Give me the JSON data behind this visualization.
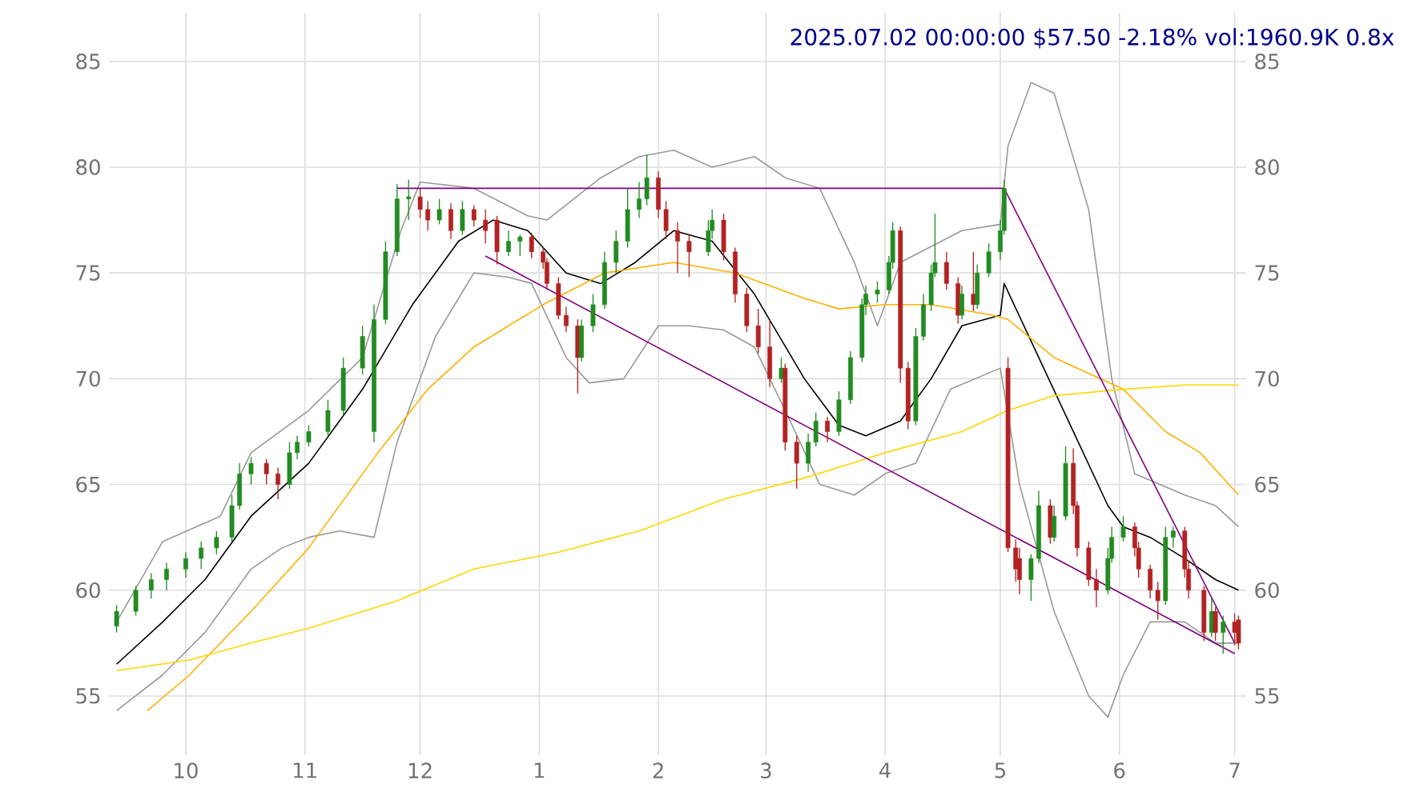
{
  "chart_data": {
    "type": "candlestick",
    "title": "2025.07.02 00:00:00 $57.50 -2.18% vol:1960.9K 0.8x",
    "x": [
      "2024-09-13",
      "2024-09-18",
      "2024-09-22",
      "2024-09-26",
      "2024-10-01",
      "2024-10-05",
      "2024-10-09",
      "2024-10-13",
      "2024-10-15",
      "2024-10-18",
      "2024-10-22",
      "2024-10-25",
      "2024-10-28",
      "2024-10-30",
      "2024-11-02",
      "2024-11-07",
      "2024-11-11",
      "2024-11-16",
      "2024-11-19",
      "2024-11-22",
      "2024-11-25",
      "2024-11-28",
      "2024-12-01",
      "2024-12-03",
      "2024-12-06",
      "2024-12-09",
      "2024-12-12",
      "2024-12-15",
      "2024-12-18",
      "2024-12-21",
      "2024-12-24",
      "2024-12-27",
      "2024-12-30",
      "2025-01-02",
      "2025-01-03",
      "2025-01-06",
      "2025-01-08",
      "2025-01-11",
      "2025-01-12",
      "2025-01-15",
      "2025-01-18",
      "2025-01-21",
      "2025-01-24",
      "2025-01-27",
      "2025-01-29",
      "2025-02-01",
      "2025-02-03",
      "2025-02-06",
      "2025-02-09",
      "2025-02-14",
      "2025-02-15",
      "2025-02-18",
      "2025-02-21",
      "2025-02-24",
      "2025-02-27",
      "2025-03-02",
      "2025-03-05",
      "2025-03-06",
      "2025-03-09",
      "2025-03-12",
      "2025-03-14",
      "2025-03-17",
      "2025-03-20",
      "2025-03-23",
      "2025-03-26",
      "2025-03-27",
      "2025-03-30",
      "2025-04-02",
      "2025-04-03",
      "2025-04-05",
      "2025-04-07",
      "2025-04-09",
      "2025-04-11",
      "2025-04-13",
      "2025-04-14",
      "2025-04-17",
      "2025-04-20",
      "2025-04-21",
      "2025-04-24",
      "2025-04-25",
      "2025-04-28",
      "2025-05-01",
      "2025-05-02",
      "2025-05-03",
      "2025-05-05",
      "2025-05-06",
      "2025-05-09",
      "2025-05-11",
      "2025-05-14",
      "2025-05-15",
      "2025-05-18",
      "2025-05-20",
      "2025-05-21",
      "2025-05-24",
      "2025-05-26",
      "2025-05-29",
      "2025-05-30",
      "2025-06-02",
      "2025-06-05",
      "2025-06-06",
      "2025-06-09",
      "2025-06-11",
      "2025-06-13",
      "2025-06-15",
      "2025-06-18",
      "2025-06-19",
      "2025-06-23",
      "2025-06-25",
      "2025-06-26",
      "2025-06-28",
      "2025-07-01",
      "2025-07-02"
    ],
    "ohlc": [
      [
        58.3,
        59.3,
        58.0,
        59.0
      ],
      [
        59.0,
        60.2,
        58.8,
        60.0
      ],
      [
        60.0,
        60.8,
        59.6,
        60.5
      ],
      [
        60.5,
        61.3,
        60.0,
        61.0
      ],
      [
        61.0,
        61.8,
        60.6,
        61.5
      ],
      [
        61.5,
        62.3,
        61.0,
        62.0
      ],
      [
        62.0,
        62.8,
        61.7,
        62.5
      ],
      [
        62.5,
        64.5,
        62.3,
        64.0
      ],
      [
        64.0,
        66.0,
        63.8,
        65.5
      ],
      [
        65.5,
        66.3,
        65.0,
        66.0
      ],
      [
        66.0,
        66.2,
        65.0,
        65.5
      ],
      [
        65.5,
        65.8,
        64.3,
        65.0
      ],
      [
        65.0,
        67.0,
        64.8,
        66.5
      ],
      [
        66.5,
        67.3,
        66.2,
        67.0
      ],
      [
        67.0,
        67.8,
        66.8,
        67.5
      ],
      [
        67.5,
        69.0,
        67.3,
        68.5
      ],
      [
        68.5,
        71.0,
        68.3,
        70.5
      ],
      [
        70.5,
        72.5,
        70.2,
        72.0
      ],
      [
        67.5,
        73.5,
        67.0,
        72.8
      ],
      [
        72.8,
        76.5,
        72.6,
        76.0
      ],
      [
        76.0,
        79.2,
        75.8,
        78.5
      ],
      [
        78.5,
        79.4,
        77.5,
        78.6
      ],
      [
        78.6,
        79.0,
        77.6,
        78.0
      ],
      [
        78.0,
        78.4,
        77.0,
        77.5
      ],
      [
        77.5,
        78.5,
        77.3,
        78.0
      ],
      [
        78.0,
        78.3,
        76.6,
        77.0
      ],
      [
        77.0,
        78.4,
        76.8,
        78.0
      ],
      [
        78.0,
        78.2,
        77.2,
        77.5
      ],
      [
        77.5,
        78.0,
        76.4,
        77.0
      ],
      [
        77.5,
        77.7,
        75.4,
        76.0
      ],
      [
        76.0,
        77.0,
        75.8,
        76.5
      ],
      [
        76.5,
        76.8,
        75.8,
        76.7
      ],
      [
        76.7,
        76.9,
        75.7,
        76.0
      ],
      [
        76.0,
        76.2,
        75.2,
        75.5
      ],
      [
        75.5,
        75.7,
        74.2,
        74.5
      ],
      [
        74.5,
        74.8,
        72.8,
        73.0
      ],
      [
        73.0,
        73.4,
        72.2,
        72.5
      ],
      [
        72.5,
        72.8,
        69.3,
        71.0
      ],
      [
        71.0,
        72.8,
        70.8,
        72.5
      ],
      [
        72.5,
        74.0,
        72.2,
        73.5
      ],
      [
        73.5,
        76.0,
        73.3,
        75.5
      ],
      [
        75.5,
        77.0,
        75.0,
        76.5
      ],
      [
        76.5,
        79.0,
        76.2,
        78.0
      ],
      [
        78.0,
        79.3,
        77.6,
        78.5
      ],
      [
        78.5,
        80.6,
        78.2,
        79.5
      ],
      [
        79.5,
        79.8,
        77.6,
        78.0
      ],
      [
        78.0,
        78.4,
        76.6,
        77.0
      ],
      [
        77.0,
        77.4,
        75.0,
        76.5
      ],
      [
        76.5,
        76.8,
        74.8,
        76.0
      ],
      [
        76.0,
        77.5,
        75.8,
        77.0
      ],
      [
        77.0,
        78.0,
        76.6,
        77.5
      ],
      [
        77.5,
        77.8,
        75.6,
        76.0
      ],
      [
        76.0,
        76.2,
        73.6,
        74.0
      ],
      [
        74.0,
        74.3,
        72.2,
        72.5
      ],
      [
        72.5,
        73.3,
        71.2,
        71.5
      ],
      [
        71.5,
        72.8,
        69.6,
        70.0
      ],
      [
        70.0,
        71.0,
        69.8,
        70.5
      ],
      [
        70.5,
        70.7,
        66.6,
        67.0
      ],
      [
        67.0,
        67.3,
        64.8,
        66.0
      ],
      [
        66.0,
        67.4,
        65.6,
        67.0
      ],
      [
        67.0,
        68.4,
        66.8,
        68.0
      ],
      [
        68.0,
        68.2,
        67.0,
        67.5
      ],
      [
        67.5,
        69.4,
        67.3,
        69.0
      ],
      [
        69.0,
        71.3,
        68.8,
        71.0
      ],
      [
        71.0,
        73.8,
        70.8,
        73.5
      ],
      [
        73.5,
        74.4,
        73.0,
        74.0
      ],
      [
        74.0,
        74.6,
        73.6,
        74.2
      ],
      [
        74.2,
        75.8,
        74.0,
        75.5
      ],
      [
        75.5,
        77.4,
        75.2,
        77.0
      ],
      [
        77.0,
        77.2,
        69.8,
        70.5
      ],
      [
        70.5,
        70.8,
        67.6,
        68.0
      ],
      [
        68.0,
        72.4,
        67.8,
        72.0
      ],
      [
        72.0,
        74.0,
        71.8,
        73.5
      ],
      [
        73.5,
        75.4,
        73.2,
        75.0
      ],
      [
        75.0,
        77.8,
        74.8,
        75.5
      ],
      [
        75.5,
        76.0,
        74.2,
        74.5
      ],
      [
        74.5,
        74.8,
        72.6,
        73.0
      ],
      [
        73.0,
        74.4,
        72.8,
        74.0
      ],
      [
        74.0,
        76.0,
        73.2,
        73.5
      ],
      [
        73.5,
        75.4,
        73.3,
        75.0
      ],
      [
        75.0,
        76.4,
        74.8,
        76.0
      ],
      [
        76.0,
        77.5,
        75.6,
        77.0
      ],
      [
        77.0,
        79.4,
        76.8,
        79.0
      ],
      [
        70.5,
        71.0,
        61.8,
        62.0
      ],
      [
        62.0,
        62.4,
        60.4,
        61.0
      ],
      [
        61.5,
        62.0,
        59.8,
        60.5
      ],
      [
        60.5,
        61.7,
        59.5,
        61.5
      ],
      [
        61.5,
        64.7,
        61.3,
        64.0
      ],
      [
        64.0,
        64.3,
        62.2,
        62.5
      ],
      [
        62.5,
        64.0,
        62.3,
        63.5
      ],
      [
        63.5,
        66.8,
        63.3,
        66.0
      ],
      [
        66.0,
        66.7,
        63.6,
        64.0
      ],
      [
        64.0,
        64.2,
        61.6,
        62.0
      ],
      [
        62.0,
        62.3,
        60.2,
        60.5
      ],
      [
        60.5,
        61.0,
        59.2,
        60.0
      ],
      [
        60.0,
        62.0,
        59.8,
        61.5
      ],
      [
        61.5,
        63.0,
        61.3,
        62.5
      ],
      [
        62.5,
        63.5,
        62.3,
        63.0
      ],
      [
        63.0,
        63.2,
        61.6,
        62.0
      ],
      [
        62.0,
        62.3,
        60.6,
        61.0
      ],
      [
        61.0,
        61.2,
        59.6,
        60.0
      ],
      [
        60.0,
        60.4,
        58.6,
        59.5
      ],
      [
        59.5,
        63.0,
        59.3,
        62.5
      ],
      [
        62.5,
        63.0,
        62.0,
        62.8
      ],
      [
        62.8,
        63.0,
        60.6,
        61.0
      ],
      [
        61.0,
        61.4,
        59.6,
        60.0
      ],
      [
        60.0,
        60.2,
        57.6,
        58.0
      ],
      [
        58.0,
        59.6,
        57.8,
        59.0
      ],
      [
        59.0,
        59.2,
        57.6,
        58.0
      ],
      [
        58.0,
        58.8,
        57.0,
        58.5
      ],
      [
        58.5,
        58.9,
        57.4,
        58.0
      ],
      [
        58.6,
        58.8,
        57.2,
        57.5
      ]
    ],
    "series": [
      {
        "type": "line",
        "color": "#000000",
        "x": [
          "2024-09-13",
          "2024-09-25",
          "2024-10-06",
          "2024-10-18",
          "2024-11-02",
          "2024-11-16",
          "2024-11-29",
          "2024-12-11",
          "2024-12-20",
          "2024-12-29",
          "2025-01-08",
          "2025-01-17",
          "2025-01-26",
          "2025-02-05",
          "2025-02-15",
          "2025-02-26",
          "2025-03-11",
          "2025-03-20",
          "2025-03-27",
          "2025-04-05",
          "2025-04-13",
          "2025-04-21",
          "2025-05-01",
          "2025-05-02",
          "2025-05-11",
          "2025-05-20",
          "2025-05-29",
          "2025-06-02",
          "2025-06-09",
          "2025-06-18",
          "2025-06-26",
          "2025-07-02"
        ],
        "values": [
          56.5,
          58.5,
          60.5,
          63.5,
          66,
          69.5,
          73.5,
          76.5,
          77.5,
          77,
          75,
          74.5,
          75.5,
          77,
          76.5,
          74,
          70,
          67.8,
          67.3,
          68,
          70,
          72.5,
          73,
          74.5,
          71,
          67.5,
          64,
          63,
          62.5,
          61.5,
          60.5,
          60
        ]
      },
      {
        "type": "line",
        "color": "#999999",
        "x": [
          "2024-09-13",
          "2024-09-25",
          "2024-10-10",
          "2024-10-18",
          "2024-11-02",
          "2024-11-16",
          "2024-11-26",
          "2024-12-01",
          "2024-12-15",
          "2024-12-29",
          "2025-01-03",
          "2025-01-17",
          "2025-01-27",
          "2025-02-05",
          "2025-02-15",
          "2025-02-26",
          "2025-03-06",
          "2025-03-15",
          "2025-03-24",
          "2025-03-30",
          "2025-04-05",
          "2025-04-21",
          "2025-05-01",
          "2025-05-03",
          "2025-05-09",
          "2025-05-15",
          "2025-05-24",
          "2025-05-30",
          "2025-06-05",
          "2025-06-18",
          "2025-06-26",
          "2025-07-02"
        ],
        "values": [
          58.5,
          62.3,
          63.5,
          66.5,
          68.5,
          71,
          77,
          79.3,
          79,
          77.7,
          77.5,
          79.5,
          80.5,
          80.8,
          80,
          80.5,
          79.5,
          79,
          75.5,
          72.5,
          75.5,
          77,
          77.3,
          81,
          84,
          83.5,
          78,
          70,
          65.5,
          64.5,
          64,
          63
        ]
      },
      {
        "type": "line",
        "color": "#999999",
        "x": [
          "2024-09-13",
          "2024-09-25",
          "2024-10-06",
          "2024-10-18",
          "2024-10-26",
          "2024-11-02",
          "2024-11-10",
          "2024-11-19",
          "2024-11-25",
          "2024-12-05",
          "2024-12-15",
          "2024-12-24",
          "2024-12-30",
          "2025-01-08",
          "2025-01-14",
          "2025-01-23",
          "2025-02-01",
          "2025-02-09",
          "2025-02-18",
          "2025-02-26",
          "2025-03-06",
          "2025-03-15",
          "2025-03-24",
          "2025-04-01",
          "2025-04-09",
          "2025-04-18",
          "2025-05-01",
          "2025-05-06",
          "2025-05-15",
          "2025-05-24",
          "2025-05-29",
          "2025-06-02",
          "2025-06-09",
          "2025-06-18",
          "2025-06-26",
          "2025-07-02"
        ],
        "values": [
          54.3,
          56,
          58,
          61,
          62,
          62.5,
          62.8,
          62.5,
          67,
          72,
          75,
          74.8,
          74.5,
          71,
          69.8,
          70,
          72.5,
          72.5,
          72.3,
          71.5,
          68.5,
          65,
          64.5,
          65.5,
          66,
          69.5,
          70.5,
          65,
          59,
          55,
          54,
          56,
          58.5,
          58.5,
          57.5,
          57.5
        ]
      },
      {
        "type": "line",
        "color": "#ffb000",
        "x": [
          "2024-09-21",
          "2024-10-02",
          "2024-10-18",
          "2024-11-02",
          "2024-11-20",
          "2024-12-03",
          "2024-12-15",
          "2025-01-02",
          "2025-01-18",
          "2025-02-05",
          "2025-02-21",
          "2025-03-11",
          "2025-03-20",
          "2025-04-01",
          "2025-04-13",
          "2025-04-29",
          "2025-05-03",
          "2025-05-15",
          "2025-06-02",
          "2025-06-13",
          "2025-06-22",
          "2025-07-02"
        ],
        "values": [
          54.3,
          56,
          59,
          62,
          66.5,
          69.5,
          71.5,
          73.5,
          75,
          75.5,
          75,
          73.8,
          73.3,
          73.5,
          73.5,
          73,
          72.8,
          71,
          69.5,
          67.5,
          66.5,
          64.5
        ]
      },
      {
        "type": "line",
        "color": "#ffd700",
        "x": [
          "2024-09-13",
          "2024-10-02",
          "2024-10-18",
          "2024-11-02",
          "2024-11-25",
          "2024-12-15",
          "2025-01-06",
          "2025-01-27",
          "2025-02-18",
          "2025-03-11",
          "2025-04-01",
          "2025-04-21",
          "2025-05-03",
          "2025-05-15",
          "2025-06-02",
          "2025-06-18",
          "2025-07-02"
        ],
        "values": [
          56.2,
          56.7,
          57.5,
          58.2,
          59.5,
          61,
          61.8,
          62.8,
          64.3,
          65.3,
          66.5,
          67.5,
          68.5,
          69.2,
          69.5,
          69.7,
          69.7
        ]
      },
      {
        "type": "line",
        "color": "#800080",
        "x": [
          "2024-12-18",
          "2025-07-01"
        ],
        "values": [
          75.8,
          57
        ]
      },
      {
        "type": "line",
        "color": "#800080",
        "x": [
          "2024-11-25",
          "2025-05-02"
        ],
        "values": [
          79,
          79
        ]
      },
      {
        "type": "line",
        "color": "#800080",
        "x": [
          "2025-05-02",
          "2025-07-01"
        ],
        "values": [
          79,
          57.5
        ]
      }
    ],
    "xlim": [
      "2024-09-11",
      "2025-07-04"
    ],
    "ylim": [
      52.2,
      87.3
    ],
    "xticks": [
      {
        "value": "2024-10-01",
        "label": "10"
      },
      {
        "value": "2024-11-01",
        "label": "11"
      },
      {
        "value": "2024-12-01",
        "label": "12"
      },
      {
        "value": "2025-01-01",
        "label": "1"
      },
      {
        "value": "2025-02-01",
        "label": "2"
      },
      {
        "value": "2025-03-01",
        "label": "3"
      },
      {
        "value": "2025-04-01",
        "label": "4"
      },
      {
        "value": "2025-05-01",
        "label": "5"
      },
      {
        "value": "2025-06-01",
        "label": "6"
      },
      {
        "value": "2025-07-01",
        "label": "7"
      }
    ],
    "yticks": [
      55,
      60,
      65,
      70,
      75,
      80,
      85
    ],
    "y2lim": [
      52.2,
      87.3
    ],
    "y2ticks": [
      55,
      60,
      65,
      70,
      75,
      80,
      85
    ],
    "grid": true
  }
}
